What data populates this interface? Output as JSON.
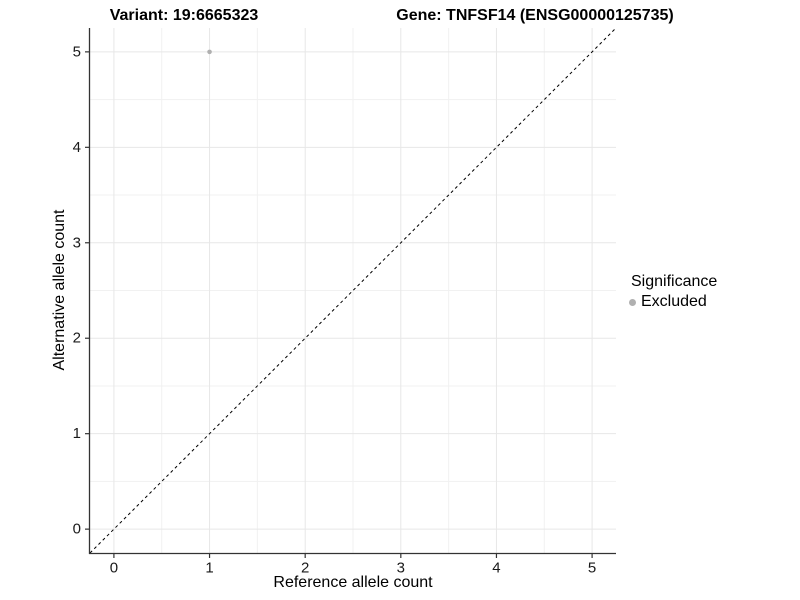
{
  "chart_data": {
    "type": "scatter",
    "title_left": "Variant: 19:6665323",
    "title_right": "Gene: TNFSF14 (ENSG00000125735)",
    "xlabel": "Reference allele count",
    "ylabel": "Alternative allele count",
    "xlim": [
      -0.25,
      5.25
    ],
    "ylim": [
      -0.25,
      5.25
    ],
    "x_ticks": [
      0,
      1,
      2,
      3,
      4,
      5
    ],
    "y_ticks": [
      0,
      1,
      2,
      3,
      4,
      5
    ],
    "minor_grid_step": 0.5,
    "grid": "major+minor",
    "points": [
      {
        "x": 1,
        "y": 5,
        "significance": "Excluded"
      }
    ],
    "reference_line": {
      "slope": 1,
      "intercept": 0,
      "style": "dashed"
    },
    "legend": {
      "title": "Significance",
      "position": "right",
      "entries": [
        {
          "label": "Excluded",
          "color": "#b0b0b0",
          "marker": "circle"
        }
      ]
    }
  },
  "colors": {
    "background": "#ffffff",
    "grid_major": "#e7e7e7",
    "grid_minor": "#f1f1f1",
    "axis_line": "#333333",
    "tick_mark": "#333333",
    "tick_label": "#1a1a1a",
    "reference_line": "#000000",
    "point": "#b0b0b0"
  }
}
